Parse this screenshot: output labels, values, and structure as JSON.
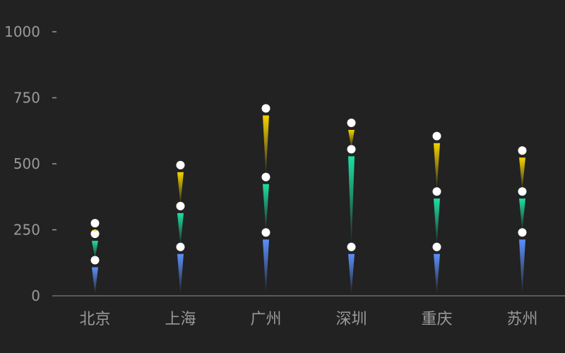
{
  "chart_data": {
    "type": "bar",
    "title": "",
    "xlabel": "",
    "ylabel": "",
    "ylim": [
      0,
      1000
    ],
    "yticks": [
      0,
      250,
      500,
      750,
      1000
    ],
    "categories": [
      "北京",
      "上海",
      "广州",
      "深圳",
      "重庆",
      "苏州"
    ],
    "series": [
      {
        "color": "#5b8ff9",
        "values": [
          135,
          185,
          240,
          185,
          185,
          240
        ]
      },
      {
        "color": "#1ddfa3",
        "values": [
          235,
          340,
          450,
          555,
          395,
          395
        ]
      },
      {
        "color": "#f4d100",
        "values": [
          275,
          495,
          710,
          655,
          605,
          550
        ]
      }
    ],
    "grid": false,
    "legend": "none"
  }
}
